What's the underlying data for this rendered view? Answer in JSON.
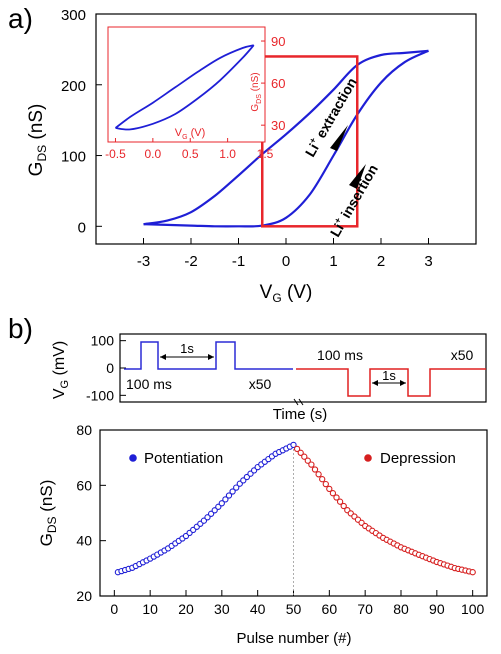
{
  "panel_a": {
    "label": "a)",
    "xlabel": "V",
    "xlabel_sub": "G",
    "xlabel_unit": " (V)",
    "ylabel": "G",
    "ylabel_sub": "DS",
    "ylabel_unit": " (nS)",
    "annot_extraction_pre": "Li",
    "annot_extraction_sup": "+",
    "annot_extraction_post": " extraction",
    "annot_insertion_pre": "Li",
    "annot_insertion_sup": "+",
    "annot_insertion_post": " insertion",
    "inset_xlabel": "V",
    "inset_xlabel_sub": "G",
    "inset_xlabel_unit": " (V)",
    "inset_ylabel": "G",
    "inset_ylabel_sub": "DS",
    "inset_ylabel_unit": " (nS)"
  },
  "panel_b": {
    "label": "b)",
    "pulse_ylabel": "V",
    "pulse_ylabel_sub": "G",
    "pulse_ylabel_unit": " (mV)",
    "pulse_xlabel": "Time (s)",
    "pulse_yticks": [
      "100",
      "0",
      "-100"
    ],
    "pos_width_label": "100 ms",
    "pos_period_label": "1s",
    "pos_repeat_label": "x50",
    "neg_width_label": "100 ms",
    "neg_period_label": "1s",
    "neg_repeat_label": "x50",
    "xlabel": "Pulse number (#)",
    "ylabel": "G",
    "ylabel_sub": "DS",
    "ylabel_unit": " (nS)"
  },
  "colors": {
    "hysteresis": "#1f1fd6",
    "inset": "#1f1fd6",
    "highlight_box": "#e8262b",
    "inset_axis": "#e8262b",
    "potentiation": "#1f1fd6",
    "depression": "#d61f1f",
    "positive_pulse": "#2b2bd6",
    "negative_pulse": "#e02020"
  },
  "chart_data": [
    {
      "type": "line",
      "id": "transfer_hysteresis",
      "xlim": [
        -4,
        4
      ],
      "ylim": [
        -25,
        300
      ],
      "xticks": [
        -3,
        -2,
        -1,
        0,
        1,
        2,
        3
      ],
      "yticks": [
        0,
        100,
        200,
        300
      ],
      "highlight_box_x": [
        -0.5,
        1.5
      ],
      "highlight_box_y": [
        0,
        240
      ],
      "series": [
        {
          "branch": "forward",
          "x": [
            -3,
            -2.5,
            -2,
            -1.5,
            -1,
            -0.5,
            0,
            0.5,
            1,
            1.5,
            2,
            2.5,
            3
          ],
          "y": [
            3,
            2,
            1,
            0,
            0,
            1,
            12,
            45,
            100,
            158,
            203,
            232,
            248
          ]
        },
        {
          "branch": "reverse",
          "x": [
            3,
            2.5,
            2,
            1.5,
            1,
            0.5,
            0,
            -0.5,
            -1,
            -1.5,
            -2,
            -2.5,
            -3
          ],
          "y": [
            248,
            245,
            242,
            228,
            193,
            160,
            130,
            102,
            72,
            43,
            20,
            8,
            3
          ]
        }
      ]
    },
    {
      "type": "line",
      "id": "inset_hysteresis",
      "xlim": [
        -0.6,
        1.5
      ],
      "ylim": [
        18,
        100
      ],
      "xticks": [
        -0.5,
        0.0,
        0.5,
        1.0,
        1.5
      ],
      "xtick_labels": [
        "-0.5",
        "0.0",
        "0.5",
        "1.0",
        "1.5"
      ],
      "yticks": [
        30,
        60,
        90
      ],
      "series": [
        {
          "branch": "forward",
          "x": [
            -0.5,
            -0.3,
            0,
            0.3,
            0.6,
            0.9,
            1.2,
            1.35
          ],
          "y": [
            28,
            27,
            31,
            38,
            49,
            62,
            78,
            87
          ]
        },
        {
          "branch": "reverse",
          "x": [
            1.35,
            1.2,
            0.9,
            0.6,
            0.3,
            0,
            -0.3,
            -0.5
          ],
          "y": [
            87,
            85,
            78,
            68,
            57,
            46,
            36,
            28
          ]
        }
      ]
    },
    {
      "type": "line",
      "id": "gate_pulses",
      "xlabel": "Time (s)",
      "ylim": [
        -120,
        120
      ],
      "yticks": [
        100,
        0,
        -100
      ],
      "series": [
        {
          "name": "Potentiation",
          "amplitude": 100,
          "pulse_width_ms": 100,
          "period_s": 1,
          "repeats": 50
        },
        {
          "name": "Depression",
          "amplitude": -100,
          "pulse_width_ms": 100,
          "period_s": 1,
          "repeats": 50
        }
      ]
    },
    {
      "type": "scatter",
      "id": "potentiation_depression",
      "xlim": [
        -4,
        104
      ],
      "ylim": [
        20,
        80
      ],
      "xticks": [
        0,
        10,
        20,
        30,
        40,
        50,
        60,
        70,
        80,
        90,
        100
      ],
      "yticks": [
        20,
        40,
        60,
        80
      ],
      "divider_x": 50,
      "series": [
        {
          "name": "Potentiation",
          "x": [
            1,
            5,
            10,
            15,
            20,
            25,
            30,
            35,
            40,
            45,
            50
          ],
          "y": [
            28.6,
            30.2,
            33.5,
            37.2,
            41.7,
            47.2,
            53.5,
            60.6,
            66.6,
            71.4,
            74.6
          ]
        },
        {
          "name": "Depression",
          "x": [
            50,
            55,
            60,
            65,
            70,
            75,
            80,
            85,
            90,
            95,
            100
          ],
          "y": [
            74.6,
            67.5,
            58.7,
            51.0,
            45.3,
            41.0,
            37.6,
            34.9,
            32.3,
            30.1,
            28.6
          ]
        }
      ]
    }
  ]
}
